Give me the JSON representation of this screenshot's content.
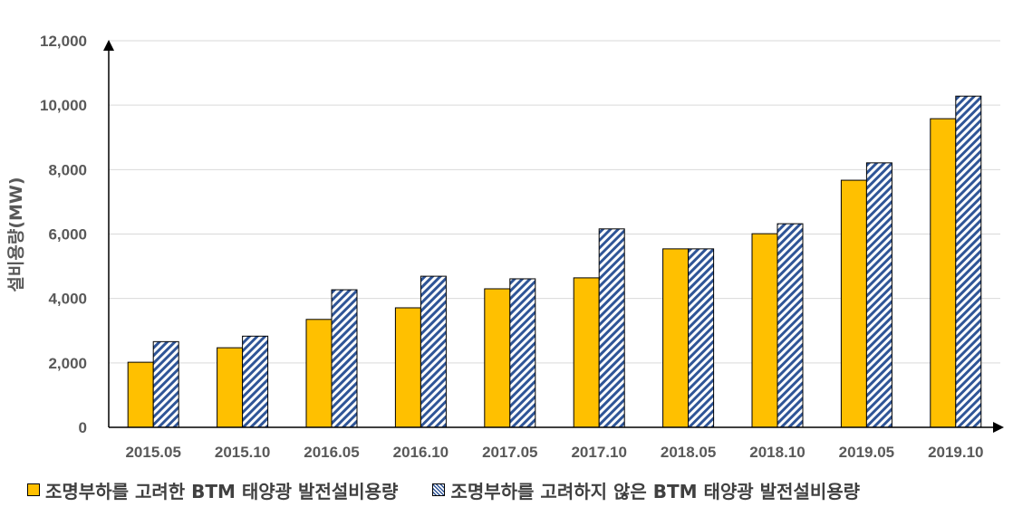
{
  "chart_data": {
    "type": "bar",
    "categories": [
      "2015.05",
      "2015.10",
      "2016.05",
      "2016.10",
      "2017.05",
      "2017.10",
      "2018.05",
      "2018.10",
      "2019.05",
      "2019.10"
    ],
    "series": [
      {
        "name": "조명부하를 고려한 BTM 태양광 발전설비용량",
        "values": [
          2020,
          2470,
          3350,
          3710,
          4300,
          4640,
          5540,
          6010,
          7670,
          9580
        ],
        "color": "#FFC000",
        "pattern": "solid"
      },
      {
        "name": "조명부하를 고려하지 않은 BTM 태양광 발전설비용량",
        "values": [
          2660,
          2830,
          4270,
          4690,
          4610,
          6160,
          5540,
          6320,
          8210,
          10280
        ],
        "color": "#2F5597",
        "pattern": "diagonal-hatch"
      }
    ],
    "title": "",
    "xlabel": "",
    "ylabel": "설비용량(MW)",
    "ylim": [
      0,
      12000
    ],
    "yticks": [
      0,
      2000,
      4000,
      6000,
      8000,
      10000,
      12000
    ],
    "ytick_labels": [
      "0",
      "2,000",
      "4,000",
      "6,000",
      "8,000",
      "10,000",
      "12,000"
    ],
    "grid": true,
    "legend_position": "bottom"
  }
}
